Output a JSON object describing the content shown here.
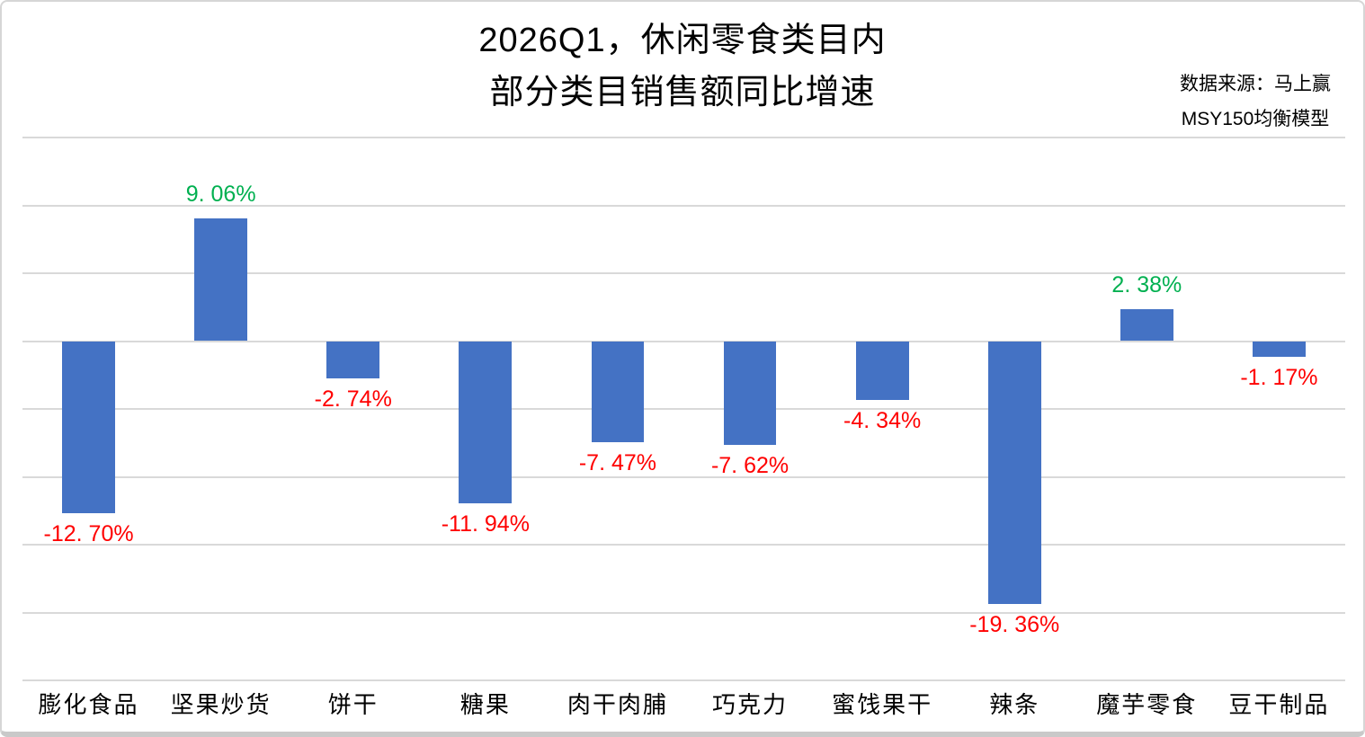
{
  "title": {
    "line1": "2026Q1，休闲零食类目内",
    "line2": "部分类目销售额同比增速"
  },
  "source": {
    "line1": "数据来源：马上赢",
    "line2": "MSY150均衡模型"
  },
  "colors": {
    "bar": "#4472C4",
    "positive_label": "#00B050",
    "negative_label": "#FF0000",
    "gridline": "#D9D9D9"
  },
  "chart_data": {
    "type": "bar",
    "title": "2026Q1，休闲零食类目内部分类目销售额同比增速",
    "xlabel": "",
    "ylabel": "",
    "categories": [
      "膨化食品",
      "坚果炒货",
      "饼干",
      "糖果",
      "肉干肉脯",
      "巧克力",
      "蜜饯果干",
      "辣条",
      "魔芋零食",
      "豆干制品"
    ],
    "values": [
      -12.7,
      9.06,
      -2.74,
      -11.94,
      -7.47,
      -7.62,
      -4.34,
      -19.36,
      2.38,
      -1.17
    ],
    "labels": [
      "-12. 70%",
      "9. 06%",
      "-2. 74%",
      "-11. 94%",
      "-7. 47%",
      "-7. 62%",
      "-4. 34%",
      "-19. 36%",
      "2. 38%",
      "-1. 17%"
    ],
    "ylim": [
      -25,
      15
    ],
    "gridline_step": 5,
    "grid": true,
    "legend": false,
    "y_tick_labels_visible": false
  }
}
